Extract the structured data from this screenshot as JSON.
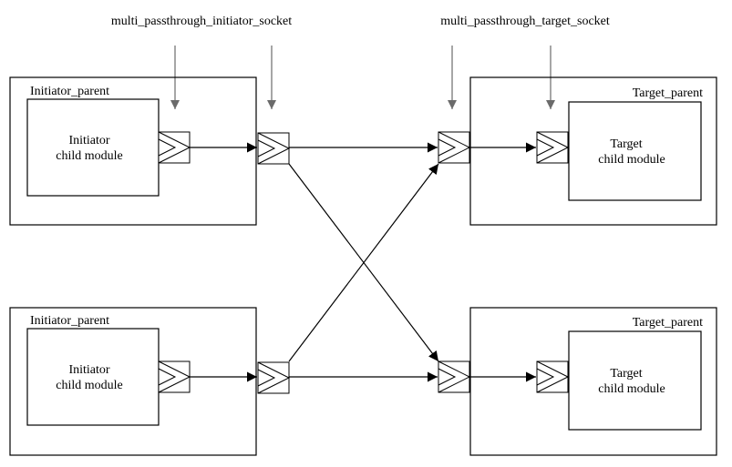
{
  "labels": {
    "initiator_socket": "multi_passthrough_initiator_socket",
    "target_socket": "multi_passthrough_target_socket"
  },
  "parents": [
    {
      "name": "Initiator_parent",
      "child_line1": "Initiator",
      "child_line2": "child module"
    },
    {
      "name": "Target_parent",
      "child_line1": "Target",
      "child_line2": "child module"
    },
    {
      "name": "Initiator_parent",
      "child_line1": "Initiator",
      "child_line2": "child module"
    },
    {
      "name": "Target_parent",
      "child_line1": "Target",
      "child_line2": "child module"
    }
  ],
  "colors": {
    "line": "#000000",
    "pointer_arrow": "#6b6b6b",
    "background": "#ffffff"
  }
}
